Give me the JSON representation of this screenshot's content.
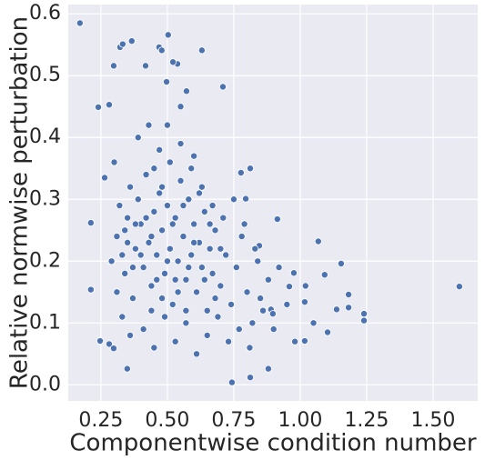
{
  "chart_data": {
    "type": "scatter",
    "xlabel": "Componentwise condition number",
    "ylabel": "Relative normwise perturbation",
    "color": "#4c72b0",
    "grid": true,
    "xlim": [
      0.127,
      1.668
    ],
    "ylim": [
      -0.026,
      0.615
    ],
    "xticks": [
      0.25,
      {
        "value": 0.5,
        "label": "0.50"
      },
      0.75,
      {
        "value": 1.0,
        "label": "1.00"
      },
      1.25,
      {
        "value": 1.5,
        "label": "1.50"
      }
    ],
    "yticks": [
      {
        "value": 0,
        "label": "0.0"
      },
      0.1,
      0.2,
      0.3,
      0.4,
      0.5,
      0.6
    ],
    "x": [
      0.212,
      0.212,
      0.24,
      0.247,
      0.264,
      0.171,
      0.281,
      0.298,
      0.322,
      0.332,
      0.366,
      0.281,
      0.298,
      0.349,
      0.418,
      0.469,
      0.479,
      0.503,
      0.538,
      0.63,
      0.709,
      0.521,
      0.572,
      0.497,
      1.599,
      1.24,
      1.24,
      1.154,
      1.068,
      1.182,
      1.182,
      1.137,
      1.103,
      1.092,
      1.017,
      1.017,
      0.914,
      0.976,
      0.959,
      0.89,
      0.897,
      0.88,
      0.812,
      0.743,
      0.795,
      0.812,
      0.777,
      0.846,
      0.3,
      0.31,
      0.32,
      0.33,
      0.34,
      0.35,
      0.36,
      0.37,
      0.38,
      0.39,
      0.4,
      0.41,
      0.42,
      0.43,
      0.44,
      0.45,
      0.46,
      0.47,
      0.48,
      0.49,
      0.5,
      0.51,
      0.52,
      0.53,
      0.54,
      0.55,
      0.56,
      0.57,
      0.58,
      0.59,
      0.6,
      0.61,
      0.62,
      0.63,
      0.64,
      0.65,
      0.66,
      0.67,
      0.68,
      0.7,
      0.72,
      0.74,
      0.76,
      0.78,
      0.8,
      0.82,
      0.84,
      0.86,
      0.88,
      0.33,
      0.36,
      0.39,
      0.41,
      0.43,
      0.45,
      0.47,
      0.49,
      0.51,
      0.53,
      0.55,
      0.57,
      0.59,
      0.61,
      0.63,
      0.65,
      0.67,
      0.69,
      0.71,
      0.73,
      0.75,
      0.77,
      0.79,
      0.81,
      0.83,
      0.85,
      0.9,
      0.92,
      0.95,
      0.98,
      1.02,
      1.05,
      0.29,
      0.31,
      0.34,
      0.37,
      0.4,
      0.42,
      0.44,
      0.46,
      0.48,
      0.5,
      0.52,
      0.54,
      0.56,
      0.58,
      0.6,
      0.62,
      0.64,
      0.66,
      0.68,
      0.7,
      0.45,
      0.5,
      0.55,
      0.6,
      0.48,
      0.53,
      0.57,
      0.44,
      0.38,
      0.35
    ],
    "values": [
      0.262,
      0.154,
      0.449,
      0.071,
      0.335,
      0.585,
      0.453,
      0.516,
      0.546,
      0.551,
      0.556,
      0.066,
      0.059,
      0.026,
      0.516,
      0.546,
      0.541,
      0.566,
      0.519,
      0.541,
      0.482,
      0.522,
      0.475,
      0.49,
      0.159,
      0.115,
      0.104,
      0.196,
      0.232,
      0.146,
      0.125,
      0.122,
      0.085,
      0.178,
      0.134,
      0.071,
      0.268,
      0.181,
      0.159,
      0.122,
      0.115,
      0.026,
      0.012,
      0.004,
      0.301,
      0.35,
      0.343,
      0.225,
      0.36,
      0.24,
      0.29,
      0.21,
      0.18,
      0.27,
      0.32,
      0.14,
      0.22,
      0.3,
      0.26,
      0.19,
      0.34,
      0.23,
      0.16,
      0.28,
      0.21,
      0.31,
      0.25,
      0.18,
      0.29,
      0.22,
      0.13,
      0.27,
      0.2,
      0.33,
      0.24,
      0.17,
      0.3,
      0.21,
      0.26,
      0.15,
      0.23,
      0.19,
      0.28,
      0.12,
      0.22,
      0.18,
      0.25,
      0.16,
      0.21,
      0.13,
      0.19,
      0.24,
      0.15,
      0.1,
      0.2,
      0.12,
      0.17,
      0.11,
      0.08,
      0.4,
      0.09,
      0.42,
      0.06,
      0.38,
      0.11,
      0.36,
      0.07,
      0.39,
      0.1,
      0.35,
      0.05,
      0.32,
      0.08,
      0.29,
      0.11,
      0.27,
      0.07,
      0.3,
      0.09,
      0.26,
      0.06,
      0.22,
      0.14,
      0.09,
      0.19,
      0.13,
      0.07,
      0.16,
      0.1,
      0.2,
      0.15,
      0.25,
      0.19,
      0.21,
      0.27,
      0.24,
      0.17,
      0.32,
      0.2,
      0.26,
      0.15,
      0.29,
      0.19,
      0.23,
      0.31,
      0.17,
      0.26,
      0.14,
      0.22,
      0.35,
      0.42,
      0.45,
      0.37,
      0.14,
      0.17,
      0.12,
      0.12,
      0.26,
      0.23
    ]
  }
}
